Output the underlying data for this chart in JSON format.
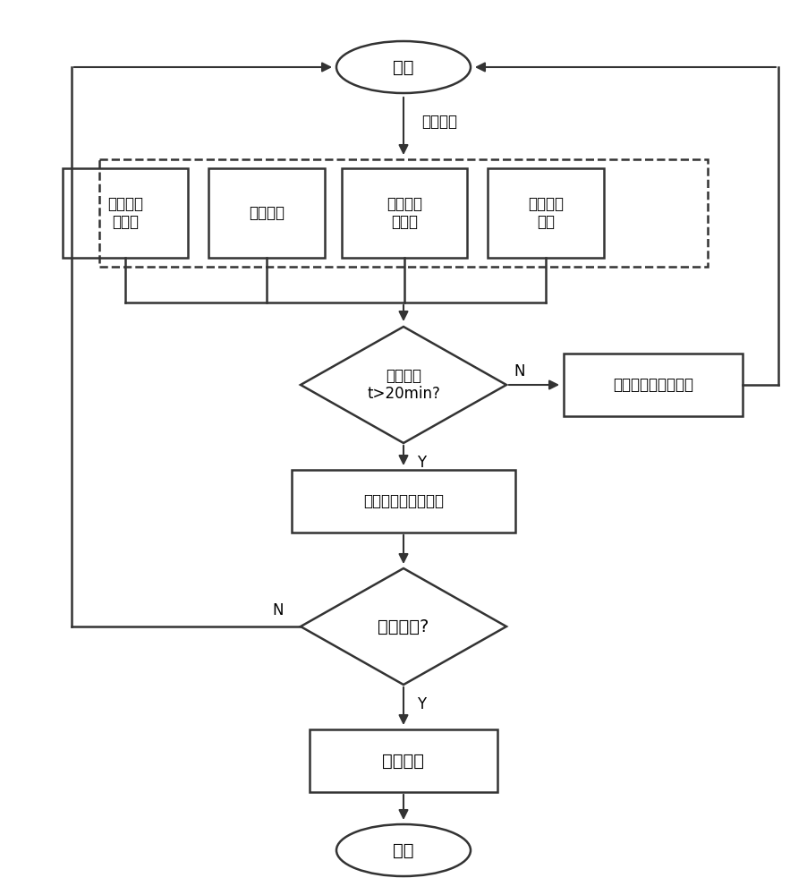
{
  "bg_color": "#ffffff",
  "line_color": "#333333",
  "text_color": "#000000",
  "font_size": 14,
  "font_size_sm": 12,
  "font_size_label": 11,
  "start_label": "开始",
  "end_label": "结束",
  "get_data_label": "获取数据",
  "box1_label": "方向盘转\n角数据",
  "box2_label": "车速数据",
  "box3_label": "方向盘压\n力数据",
  "box4_label": "眼动特征\n数据",
  "diamond1_label": "驾驶时间\nt>20min?",
  "build_model_label": "搭建自适应检测模型",
  "compare_label": "对比自适应检测模型",
  "diamond2_label": "显著差异?",
  "warning_label": "安全预警",
  "y_label": "Y",
  "n_label": "N"
}
